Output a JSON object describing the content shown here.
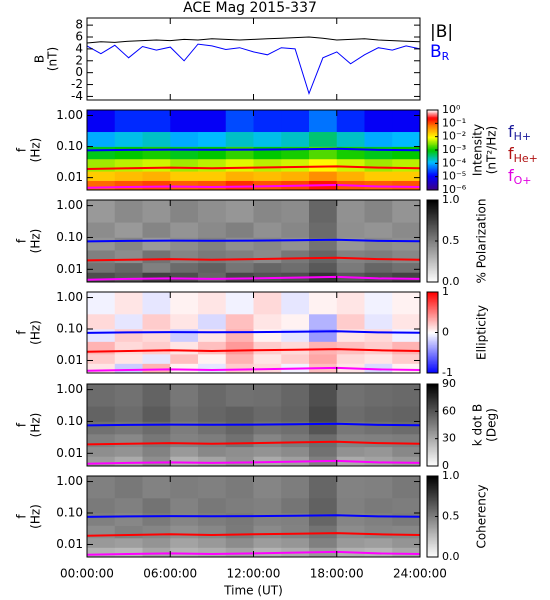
{
  "chart_data": [
    {
      "type": "line",
      "title": "ACE Mag 2015-337",
      "ylabel": [
        "B",
        "(nT)"
      ],
      "xlim": [
        0,
        24
      ],
      "ylim": [
        -4.6,
        9.2
      ],
      "yticks": [
        -4,
        -2,
        0,
        2,
        4,
        6,
        8
      ],
      "x": [
        0,
        1,
        2,
        3,
        4,
        5,
        6,
        7,
        8,
        9,
        10,
        11,
        12,
        13,
        14,
        15,
        16,
        17,
        18,
        19,
        20,
        21,
        22,
        23,
        24
      ],
      "series": [
        {
          "name": "|B|",
          "color": "#000000",
          "values": [
            5.0,
            5.2,
            5.1,
            5.3,
            5.4,
            5.5,
            5.4,
            5.6,
            5.5,
            5.7,
            5.6,
            5.5,
            5.6,
            5.7,
            5.8,
            5.9,
            6.0,
            5.8,
            5.5,
            5.6,
            5.7,
            5.5,
            5.4,
            5.3,
            5.2
          ]
        },
        {
          "name": "B",
          "subscript": "R",
          "color": "#0000ff",
          "values": [
            4.5,
            3.2,
            4.6,
            2.5,
            4.4,
            3.8,
            4.3,
            2.0,
            4.8,
            4.5,
            3.9,
            4.2,
            3.5,
            3.0,
            4.2,
            4.0,
            -3.5,
            2.5,
            3.5,
            1.5,
            3.0,
            4.2,
            3.8,
            4.5,
            4.0
          ]
        }
      ]
    },
    {
      "type": "heatmap",
      "ylabel": [
        "f",
        "(Hz)"
      ],
      "log_y": true,
      "legend": true,
      "xlim": [
        0,
        24
      ],
      "ylim": [
        0.004,
        1.5
      ],
      "yticks": [
        {
          "value": 0.01,
          "label": "0.01"
        },
        {
          "value": 0.1,
          "label": "0.10"
        },
        {
          "value": 1,
          "label": "1.00"
        }
      ],
      "x_edges": [
        0,
        2,
        4,
        6,
        8,
        10,
        12,
        14,
        16,
        18,
        20,
        22,
        24
      ],
      "y_edges": [
        0.004,
        0.008,
        0.016,
        0.04,
        0.1,
        0.3,
        1.5
      ],
      "z": [
        [
          0.08,
          0.1,
          0.12,
          0.09,
          0.1,
          0.15,
          0.1,
          0.12,
          0.2,
          0.1,
          0.09,
          0.1
        ],
        [
          0.02,
          0.025,
          0.03,
          0.02,
          0.02,
          0.03,
          0.025,
          0.03,
          0.05,
          0.03,
          0.02,
          0.02
        ],
        [
          0.004,
          0.005,
          0.006,
          0.004,
          0.005,
          0.007,
          0.005,
          0.006,
          0.01,
          0.006,
          0.004,
          0.005
        ],
        [
          0.0008,
          0.001,
          0.0012,
          0.0008,
          0.001,
          0.0015,
          0.001,
          0.0012,
          0.002,
          0.0012,
          0.0008,
          0.001
        ],
        [
          0.0001,
          0.00015,
          0.0002,
          0.0001,
          0.00012,
          0.0002,
          0.00015,
          0.0002,
          0.0004,
          0.0002,
          0.0001,
          0.00012
        ],
        [
          1e-05,
          2e-05,
          2e-05,
          1e-05,
          1e-05,
          3e-05,
          2e-05,
          2e-05,
          5e-05,
          2e-05,
          1e-05,
          1e-05
        ]
      ],
      "colormap": "rainbow",
      "clog": true,
      "clim": [
        1e-06,
        1
      ],
      "cticks": [
        {
          "value": 1,
          "label": "10⁰"
        },
        {
          "value": 0.1,
          "label": "10⁻¹"
        },
        {
          "value": 0.01,
          "label": "10⁻²"
        },
        {
          "value": 0.001,
          "label": "10⁻³"
        },
        {
          "value": 0.0001,
          "label": "10⁻⁴"
        },
        {
          "value": 1e-05,
          "label": "10⁻⁵"
        },
        {
          "value": 1e-06,
          "label": "10⁻⁶"
        }
      ],
      "colorbar_label": [
        "Intensity",
        "(nT²/Hz)"
      ],
      "x": [
        0,
        3,
        6,
        9,
        12,
        15,
        18,
        21,
        24
      ],
      "series": [
        {
          "name": "f",
          "subscript": "H+",
          "color": "#0000ff",
          "legend_color": "#1a1a9a",
          "values": [
            0.075,
            0.078,
            0.08,
            0.079,
            0.08,
            0.082,
            0.085,
            0.078,
            0.076
          ]
        },
        {
          "name": "f",
          "subscript": "He+",
          "color": "#ff0000",
          "legend_color": "#b01010",
          "values": [
            0.019,
            0.02,
            0.021,
            0.02,
            0.021,
            0.022,
            0.023,
            0.021,
            0.02
          ]
        },
        {
          "name": "f",
          "subscript": "O+",
          "color": "#ff00ff",
          "legend_color": "#e000e0",
          "values": [
            0.0047,
            0.005,
            0.0052,
            0.005,
            0.0052,
            0.0055,
            0.0058,
            0.0052,
            0.005
          ]
        }
      ]
    },
    {
      "type": "heatmap",
      "ylabel": [
        "f",
        "(Hz)"
      ],
      "log_y": true,
      "legend": false,
      "xlim": [
        0,
        24
      ],
      "ylim": [
        0.004,
        1.5
      ],
      "yticks": [
        {
          "value": 0.01,
          "label": "0.01"
        },
        {
          "value": 0.1,
          "label": "0.10"
        },
        {
          "value": 1,
          "label": "1.00"
        }
      ],
      "x_edges": [
        0,
        2,
        4,
        6,
        8,
        10,
        12,
        14,
        16,
        18,
        20,
        22,
        24
      ],
      "y_edges": [
        0.004,
        0.008,
        0.016,
        0.04,
        0.1,
        0.3,
        1.5
      ],
      "z": [
        [
          0.7,
          0.65,
          0.75,
          0.7,
          0.6,
          0.72,
          0.68,
          0.7,
          0.8,
          0.66,
          0.7,
          0.74
        ],
        [
          0.55,
          0.6,
          0.5,
          0.58,
          0.62,
          0.54,
          0.6,
          0.57,
          0.65,
          0.52,
          0.6,
          0.56
        ],
        [
          0.5,
          0.45,
          0.55,
          0.48,
          0.52,
          0.5,
          0.46,
          0.53,
          0.6,
          0.49,
          0.51,
          0.47
        ],
        [
          0.42,
          0.48,
          0.4,
          0.45,
          0.5,
          0.44,
          0.47,
          0.43,
          0.55,
          0.41,
          0.46,
          0.44
        ],
        [
          0.45,
          0.4,
          0.48,
          0.42,
          0.46,
          0.5,
          0.43,
          0.47,
          0.58,
          0.44,
          0.42,
          0.46
        ],
        [
          0.4,
          0.46,
          0.42,
          0.48,
          0.44,
          0.41,
          0.47,
          0.45,
          0.6,
          0.43,
          0.48,
          0.42
        ]
      ],
      "colormap": "gray",
      "clog": false,
      "clim": [
        0,
        1
      ],
      "cticks": [
        {
          "value": 0,
          "label": "0.0"
        },
        {
          "value": 0.5,
          "label": "0.5"
        },
        {
          "value": 1,
          "label": "1.0"
        }
      ],
      "colorbar_label": [
        "% Polarization"
      ],
      "x": [
        0,
        3,
        6,
        9,
        12,
        15,
        18,
        21,
        24
      ],
      "series": [
        {
          "color": "#0000ff",
          "values": [
            0.075,
            0.078,
            0.08,
            0.079,
            0.08,
            0.082,
            0.085,
            0.078,
            0.076
          ]
        },
        {
          "color": "#ff0000",
          "values": [
            0.019,
            0.02,
            0.021,
            0.02,
            0.021,
            0.022,
            0.023,
            0.021,
            0.02
          ]
        },
        {
          "color": "#ff00ff",
          "values": [
            0.0047,
            0.005,
            0.0052,
            0.005,
            0.0052,
            0.0055,
            0.0058,
            0.0052,
            0.005
          ]
        }
      ]
    },
    {
      "type": "heatmap",
      "ylabel": [
        "f",
        "(Hz)"
      ],
      "log_y": true,
      "legend": false,
      "xlim": [
        0,
        24
      ],
      "ylim": [
        0.004,
        1.5
      ],
      "yticks": [
        {
          "value": 0.01,
          "label": "0.01"
        },
        {
          "value": 0.1,
          "label": "0.10"
        },
        {
          "value": 1,
          "label": "1.00"
        }
      ],
      "x_edges": [
        0,
        2,
        4,
        6,
        8,
        10,
        12,
        14,
        16,
        18,
        20,
        22,
        24
      ],
      "y_edges": [
        0.004,
        0.008,
        0.016,
        0.04,
        0.1,
        0.3,
        1.5
      ],
      "z": [
        [
          0.1,
          -0.2,
          0.3,
          0.05,
          -0.1,
          0.2,
          0.15,
          -0.05,
          0.25,
          0.1,
          -0.15,
          0.05
        ],
        [
          0.2,
          0.1,
          -0.1,
          0.25,
          0.05,
          0.3,
          0.1,
          0.2,
          0.35,
          0.15,
          0.1,
          0.2
        ],
        [
          0.3,
          0.15,
          0.2,
          0.1,
          0.25,
          0.4,
          0.2,
          0.15,
          0.3,
          0.25,
          0.2,
          0.3
        ],
        [
          -0.1,
          0.2,
          0.15,
          -0.2,
          0.1,
          0.3,
          0.05,
          -0.1,
          -0.4,
          0.1,
          0.15,
          -0.05
        ],
        [
          0.15,
          -0.1,
          0.2,
          0.1,
          -0.15,
          0.25,
          0.1,
          0.05,
          -0.3,
          0.2,
          -0.1,
          0.1
        ],
        [
          -0.05,
          0.1,
          -0.1,
          0.05,
          0.1,
          -0.05,
          0.15,
          -0.1,
          0.05,
          0.1,
          -0.05,
          0.05
        ]
      ],
      "colormap": "bwr",
      "clog": false,
      "clim": [
        -1,
        1
      ],
      "cticks": [
        -1,
        0,
        1
      ],
      "colorbar_label": [
        "Ellipticity"
      ],
      "x": [
        0,
        3,
        6,
        9,
        12,
        15,
        18,
        21,
        24
      ],
      "series": [
        {
          "color": "#0000ff",
          "values": [
            0.075,
            0.078,
            0.08,
            0.079,
            0.08,
            0.082,
            0.085,
            0.078,
            0.076
          ]
        },
        {
          "color": "#ff0000",
          "values": [
            0.019,
            0.02,
            0.021,
            0.02,
            0.021,
            0.022,
            0.023,
            0.021,
            0.02
          ]
        },
        {
          "color": "#ff00ff",
          "values": [
            0.0047,
            0.005,
            0.0052,
            0.005,
            0.0052,
            0.0055,
            0.0058,
            0.0052,
            0.005
          ]
        }
      ]
    },
    {
      "type": "heatmap",
      "ylabel": [
        "f",
        "(Hz)"
      ],
      "log_y": true,
      "legend": false,
      "xlim": [
        0,
        24
      ],
      "ylim": [
        0.004,
        1.5
      ],
      "yticks": [
        {
          "value": 0.01,
          "label": "0.01"
        },
        {
          "value": 0.1,
          "label": "0.10"
        },
        {
          "value": 1,
          "label": "1.00"
        }
      ],
      "x_edges": [
        0,
        2,
        4,
        6,
        8,
        10,
        12,
        14,
        16,
        18,
        20,
        22,
        24
      ],
      "y_edges": [
        0.004,
        0.008,
        0.016,
        0.04,
        0.1,
        0.3,
        1.5
      ],
      "z": [
        [
          35,
          30,
          40,
          28,
          32,
          38,
          30,
          34,
          45,
          30,
          33,
          36
        ],
        [
          40,
          38,
          44,
          36,
          42,
          40,
          38,
          41,
          50,
          39,
          37,
          42
        ],
        [
          45,
          42,
          48,
          44,
          46,
          50,
          43,
          47,
          52,
          44,
          45,
          46
        ],
        [
          50,
          48,
          52,
          46,
          50,
          54,
          49,
          51,
          60,
          48,
          50,
          52
        ],
        [
          55,
          52,
          58,
          50,
          54,
          56,
          53,
          55,
          65,
          52,
          54,
          55
        ],
        [
          52,
          50,
          55,
          48,
          53,
          50,
          51,
          54,
          62,
          50,
          52,
          53
        ]
      ],
      "colormap": "gray",
      "clog": false,
      "clim": [
        0,
        90
      ],
      "cticks": [
        0,
        30,
        60,
        90
      ],
      "colorbar_label": [
        "k dot B",
        "(Deg)"
      ],
      "x": [
        0,
        3,
        6,
        9,
        12,
        15,
        18,
        21,
        24
      ],
      "series": [
        {
          "color": "#0000ff",
          "values": [
            0.075,
            0.078,
            0.08,
            0.079,
            0.08,
            0.082,
            0.085,
            0.078,
            0.076
          ]
        },
        {
          "color": "#ff0000",
          "values": [
            0.019,
            0.02,
            0.021,
            0.02,
            0.021,
            0.022,
            0.023,
            0.021,
            0.02
          ]
        },
        {
          "color": "#ff00ff",
          "values": [
            0.0047,
            0.005,
            0.0052,
            0.005,
            0.0052,
            0.0055,
            0.0058,
            0.0052,
            0.005
          ]
        }
      ]
    },
    {
      "type": "heatmap",
      "ylabel": [
        "f",
        "(Hz)"
      ],
      "log_y": true,
      "legend": false,
      "xlim": [
        0,
        24
      ],
      "ylim": [
        0.004,
        1.5
      ],
      "yticks": [
        {
          "value": 0.01,
          "label": "0.01"
        },
        {
          "value": 0.1,
          "label": "0.10"
        },
        {
          "value": 1,
          "label": "1.00"
        }
      ],
      "x_edges": [
        0,
        2,
        4,
        6,
        8,
        10,
        12,
        14,
        16,
        18,
        20,
        22,
        24
      ],
      "y_edges": [
        0.004,
        0.008,
        0.016,
        0.04,
        0.1,
        0.3,
        1.5
      ],
      "z": [
        [
          0.3,
          0.28,
          0.35,
          0.3,
          0.32,
          0.36,
          0.3,
          0.33,
          0.4,
          0.31,
          0.29,
          0.34
        ],
        [
          0.4,
          0.38,
          0.42,
          0.36,
          0.4,
          0.45,
          0.39,
          0.41,
          0.5,
          0.4,
          0.38,
          0.42
        ],
        [
          0.45,
          0.5,
          0.48,
          0.44,
          0.47,
          0.52,
          0.46,
          0.49,
          0.55,
          0.45,
          0.48,
          0.47
        ],
        [
          0.5,
          0.47,
          0.52,
          0.48,
          0.51,
          0.53,
          0.49,
          0.5,
          0.6,
          0.48,
          0.5,
          0.52
        ],
        [
          0.52,
          0.5,
          0.55,
          0.49,
          0.53,
          0.51,
          0.5,
          0.54,
          0.62,
          0.5,
          0.52,
          0.51
        ],
        [
          0.5,
          0.53,
          0.49,
          0.51,
          0.5,
          0.52,
          0.48,
          0.51,
          0.6,
          0.49,
          0.5,
          0.53
        ]
      ],
      "colormap": "gray",
      "clog": false,
      "clim": [
        0,
        1
      ],
      "cticks": [
        {
          "value": 0,
          "label": "0.0"
        },
        {
          "value": 0.5,
          "label": "0.5"
        },
        {
          "value": 1,
          "label": "1.0"
        }
      ],
      "colorbar_label": [
        "Coherency"
      ],
      "xticks": [
        {
          "value": 0,
          "label": "00:00:00"
        },
        {
          "value": 6,
          "label": "06:00:00"
        },
        {
          "value": 12,
          "label": "12:00:00"
        },
        {
          "value": 18,
          "label": "18:00:00"
        },
        {
          "value": 24,
          "label": "24:00:00"
        }
      ],
      "xlabel": "Time (UT)",
      "x": [
        0,
        3,
        6,
        9,
        12,
        15,
        18,
        21,
        24
      ],
      "series": [
        {
          "color": "#0000ff",
          "values": [
            0.075,
            0.078,
            0.08,
            0.079,
            0.08,
            0.082,
            0.085,
            0.078,
            0.076
          ]
        },
        {
          "color": "#ff0000",
          "values": [
            0.019,
            0.02,
            0.021,
            0.02,
            0.021,
            0.022,
            0.023,
            0.021,
            0.02
          ]
        },
        {
          "color": "#ff00ff",
          "values": [
            0.0047,
            0.005,
            0.0052,
            0.005,
            0.0052,
            0.0055,
            0.0058,
            0.0052,
            0.005
          ]
        }
      ]
    }
  ]
}
